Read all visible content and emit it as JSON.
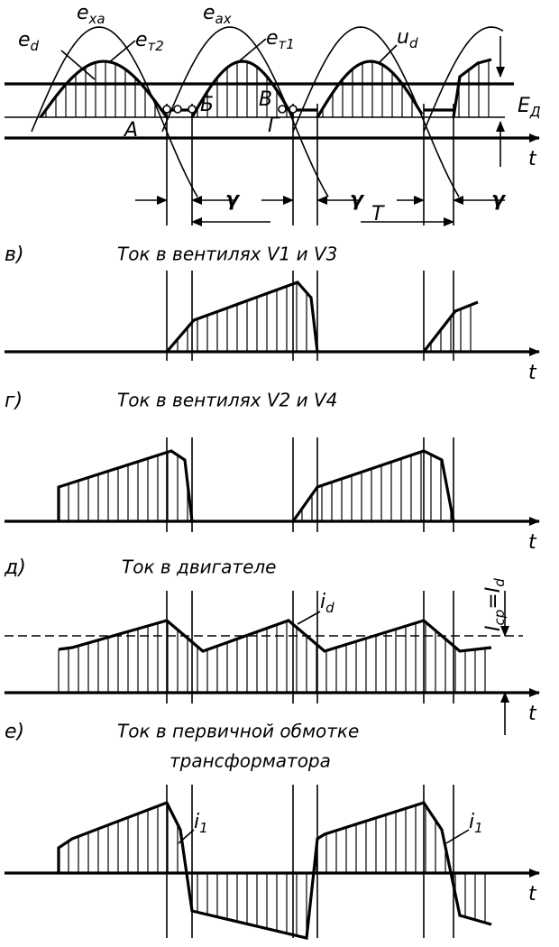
{
  "top": {
    "labels": [
      [
        "e",
        "xa"
      ],
      [
        "e",
        "т2"
      ],
      [
        "e",
        "d"
      ],
      [
        "e",
        "ax"
      ],
      [
        "e",
        "т1"
      ],
      [
        "u",
        "d"
      ],
      [
        "E",
        "Д"
      ],
      [
        "t"
      ]
    ],
    "points": [
      "А",
      "Б",
      "В",
      "Г"
    ],
    "gammas": [
      "γ",
      "γ",
      "γ"
    ],
    "period": "T"
  },
  "panels": [
    {
      "letter": "в)",
      "title": [
        "Ток в вентилях V1 и V3"
      ],
      "axis": [
        "t"
      ]
    },
    {
      "letter": "г)",
      "title": [
        "Ток в вентилях V2 и V4"
      ],
      "axis": [
        "t"
      ]
    },
    {
      "letter": "д)",
      "title": [
        "Ток в двигателе"
      ],
      "axis": [
        "t"
      ],
      "curve_labels": [
        [
          "i",
          "d"
        ]
      ],
      "level_label": [
        "I",
        "ср",
        "=I",
        "d"
      ]
    },
    {
      "letter": "е)",
      "title": [
        "Ток в первичной обмотке",
        "трансформатора"
      ],
      "axis": [
        "t"
      ],
      "curve_labels": [
        [
          "i",
          "1"
        ],
        [
          "i",
          "1"
        ]
      ]
    }
  ]
}
